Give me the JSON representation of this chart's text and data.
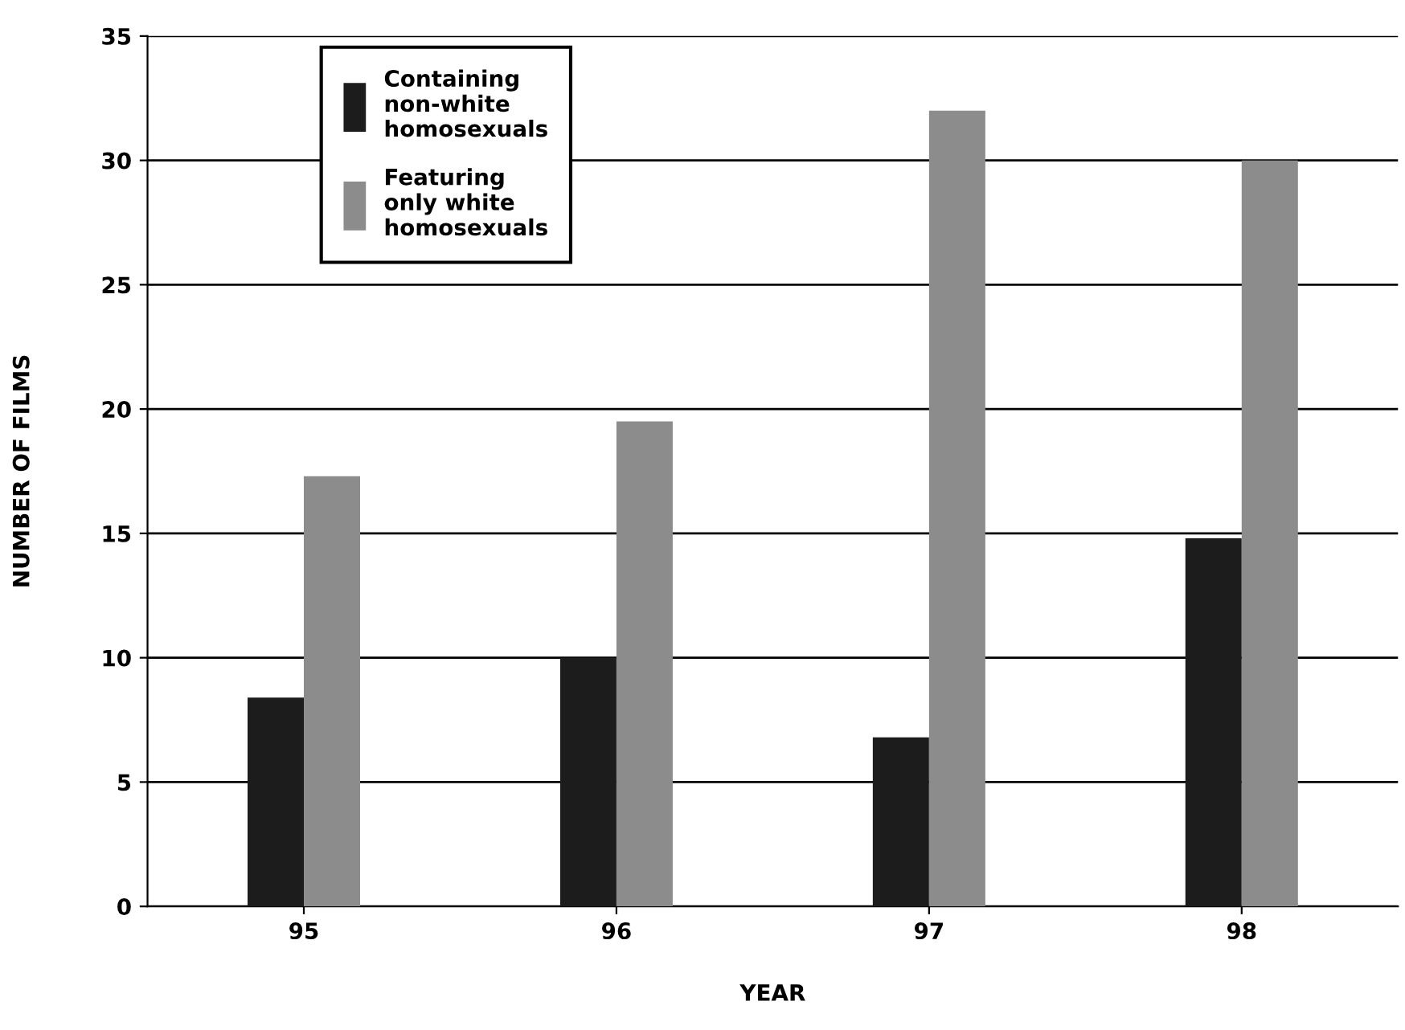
{
  "chart_data": {
    "type": "bar",
    "xlabel": "YEAR",
    "ylabel": "NUMBER OF FILMS",
    "categories": [
      "95",
      "96",
      "97",
      "98"
    ],
    "series": [
      {
        "name": "Containing\nnon-white\nhomosexuals",
        "color": "#1c1c1c",
        "values": [
          8.4,
          10,
          6.8,
          14.8
        ]
      },
      {
        "name": "Featuring\nonly white\nhomosexuals",
        "color": "#8c8c8c",
        "values": [
          17.3,
          19.5,
          32,
          30
        ]
      }
    ],
    "ylim": [
      0,
      35
    ],
    "yticks": [
      0,
      5,
      10,
      15,
      20,
      25,
      30,
      35
    ],
    "grid": "y",
    "legend": "top left"
  }
}
